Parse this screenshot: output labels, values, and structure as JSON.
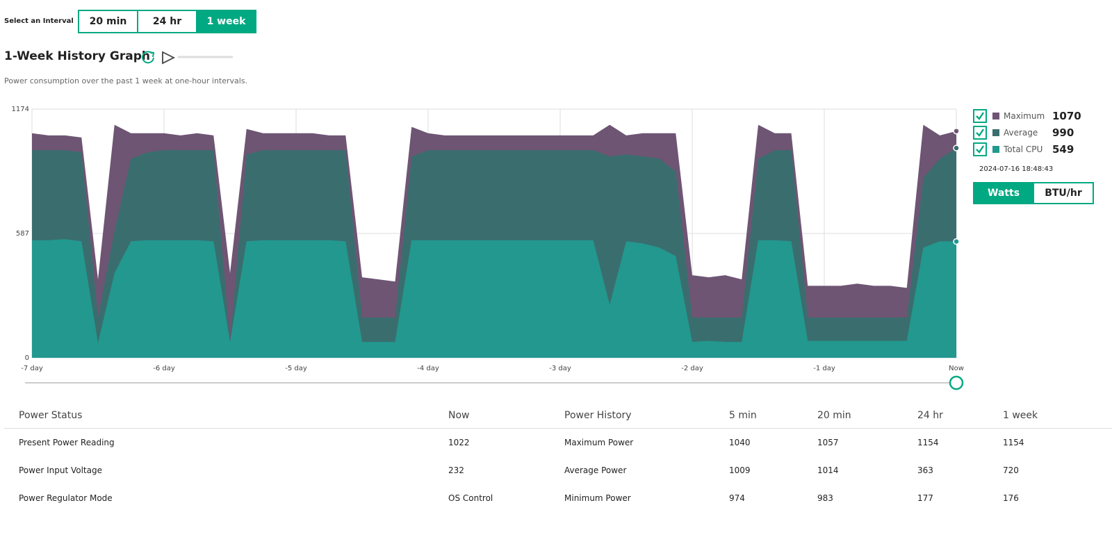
{
  "interval": {
    "label": "Select an Interval",
    "options": [
      "20 min",
      "24 hr",
      "1 week"
    ],
    "active": 2
  },
  "header": {
    "title": "1-Week History Graph",
    "description": "Power consumption over the past 1 week at one-hour intervals."
  },
  "chart_data": {
    "type": "area",
    "x": [
      -7,
      -6.875,
      -6.75,
      -6.625,
      -6.5,
      -6.375,
      -6.25,
      -6.125,
      -6,
      -5.875,
      -5.75,
      -5.625,
      -5.5,
      -5.375,
      -5.25,
      -5.125,
      -5,
      -4.875,
      -4.75,
      -4.625,
      -4.5,
      -4.375,
      -4.25,
      -4.125,
      -4,
      -3.875,
      -3.75,
      -3.625,
      -3.5,
      -3.375,
      -3.25,
      -3.125,
      -3,
      -2.875,
      -2.75,
      -2.625,
      -2.5,
      -2.375,
      -2.25,
      -2.125,
      -2,
      -1.875,
      -1.75,
      -1.625,
      -1.5,
      -1.375,
      -1.25,
      -1.125,
      -1,
      -0.875,
      -0.75,
      -0.625,
      -0.5,
      -0.375,
      -0.25,
      -0.125,
      0
    ],
    "xlim": [
      -7,
      0
    ],
    "xticks": [
      {
        "value": -7,
        "label": "-7 day"
      },
      {
        "value": -6,
        "label": "-6 day"
      },
      {
        "value": -5,
        "label": "-5 day"
      },
      {
        "value": -4,
        "label": "-4 day"
      },
      {
        "value": -3,
        "label": "-3 day"
      },
      {
        "value": -2,
        "label": "-2 day"
      },
      {
        "value": -1,
        "label": "-1 day"
      },
      {
        "value": 0,
        "label": "Now"
      }
    ],
    "ylim": [
      0,
      1174
    ],
    "yticks": [
      0,
      587,
      1174
    ],
    "grid": true,
    "series": [
      {
        "name": "Maximum",
        "color": "#6e5574",
        "current": 1070,
        "values": [
          1060,
          1050,
          1050,
          1040,
          370,
          1100,
          1060,
          1060,
          1060,
          1050,
          1060,
          1050,
          400,
          1080,
          1060,
          1060,
          1060,
          1060,
          1050,
          1050,
          380,
          370,
          360,
          1090,
          1060,
          1050,
          1050,
          1050,
          1050,
          1050,
          1050,
          1050,
          1050,
          1050,
          1050,
          1100,
          1050,
          1060,
          1060,
          1060,
          390,
          380,
          390,
          370,
          1100,
          1060,
          1060,
          340,
          340,
          340,
          350,
          340,
          340,
          330,
          1100,
          1050,
          1070
        ]
      },
      {
        "name": "Average",
        "color": "#3a6e6e",
        "current": 990,
        "values": [
          980,
          980,
          980,
          970,
          190,
          600,
          940,
          970,
          980,
          980,
          980,
          980,
          75,
          960,
          980,
          980,
          980,
          980,
          980,
          980,
          190,
          190,
          190,
          950,
          980,
          980,
          980,
          980,
          980,
          980,
          980,
          980,
          980,
          980,
          980,
          950,
          960,
          950,
          940,
          880,
          190,
          190,
          190,
          190,
          940,
          980,
          980,
          190,
          190,
          190,
          190,
          190,
          190,
          190,
          850,
          940,
          990
        ]
      },
      {
        "name": "Total CPU",
        "color": "#22988f",
        "current": 549,
        "values": [
          555,
          555,
          560,
          550,
          70,
          400,
          550,
          555,
          555,
          555,
          555,
          550,
          75,
          550,
          555,
          555,
          555,
          555,
          555,
          550,
          75,
          75,
          75,
          555,
          555,
          555,
          555,
          555,
          555,
          555,
          555,
          555,
          555,
          555,
          555,
          250,
          550,
          540,
          520,
          480,
          75,
          80,
          75,
          75,
          555,
          555,
          550,
          80,
          80,
          80,
          80,
          80,
          80,
          80,
          520,
          550,
          549
        ]
      }
    ],
    "timestamp": "2024-07-16 18:48:43"
  },
  "units": {
    "options": [
      "Watts",
      "BTU/hr"
    ],
    "active": 0
  },
  "table": {
    "headers": [
      "Power Status",
      "Now",
      "Power History",
      "5 min",
      "20 min",
      "24 hr",
      "1 week"
    ],
    "rows": [
      [
        "Present Power Reading",
        "1022",
        "Maximum Power",
        "1040",
        "1057",
        "1154",
        "1154"
      ],
      [
        "Power Input Voltage",
        "232",
        "Average Power",
        "1009",
        "1014",
        "363",
        "720"
      ],
      [
        "Power Regulator Mode",
        "OS Control",
        "Minimum Power",
        "974",
        "983",
        "177",
        "176"
      ]
    ]
  }
}
